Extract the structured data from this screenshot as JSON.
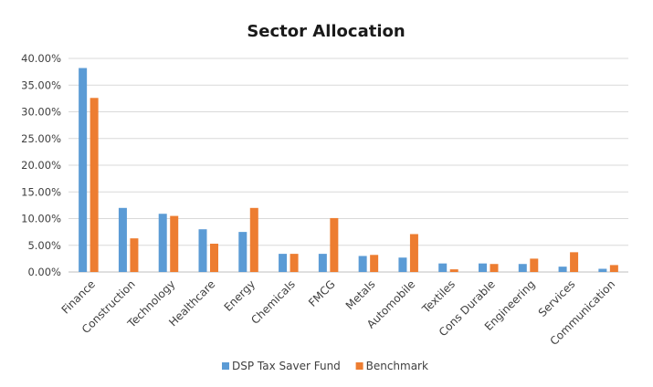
{
  "chart_data": {
    "type": "bar",
    "title": "Sector Allocation",
    "xlabel": "",
    "ylabel": "",
    "ylim": [
      0,
      40
    ],
    "yticks": [
      0,
      5,
      10,
      15,
      20,
      25,
      30,
      35,
      40
    ],
    "ytick_labels": [
      "0.00%",
      "5.00%",
      "10.00%",
      "15.00%",
      "20.00%",
      "25.00%",
      "30.00%",
      "35.00%",
      "40.00%"
    ],
    "categories": [
      "Finance",
      "Construction",
      "Technology",
      "Healthcare",
      "Energy",
      "Chemicals",
      "FMCG",
      "Metals",
      "Automobile",
      "Textiles",
      "Cons Durable",
      "Engineering",
      "Services",
      "Communication"
    ],
    "series": [
      {
        "name": "DSP Tax Saver Fund",
        "color": "#5b9bd5",
        "values": [
          38.2,
          12.0,
          10.9,
          8.0,
          7.5,
          3.4,
          3.4,
          3.0,
          2.7,
          1.6,
          1.6,
          1.5,
          1.0,
          0.6
        ]
      },
      {
        "name": "Benchmark",
        "color": "#ed7d31",
        "values": [
          32.6,
          6.3,
          10.5,
          5.3,
          12.0,
          3.4,
          10.1,
          3.2,
          7.1,
          0.5,
          1.5,
          2.5,
          3.7,
          1.3
        ]
      }
    ],
    "grid": true,
    "legend": "bottom-center"
  }
}
